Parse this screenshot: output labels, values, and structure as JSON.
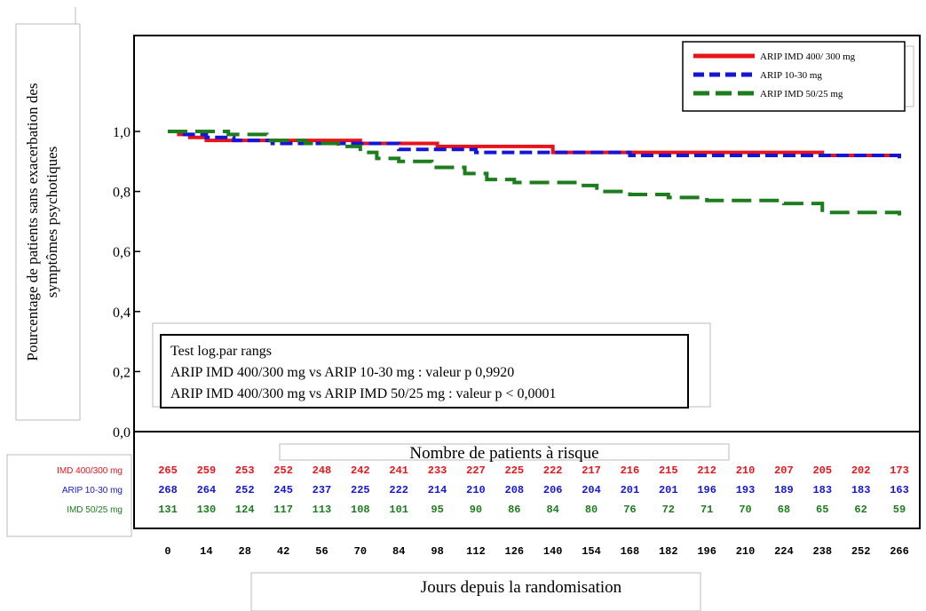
{
  "chart_data": {
    "type": "line",
    "ylabel": "Pourcentage de patients sans exacerbation des symptômes psychotiques",
    "xlabel": "Jours depuis la randomisation",
    "ylim": [
      0,
      1.0
    ],
    "xlim": [
      0,
      266
    ],
    "yticks": [
      "1,0",
      "0,8",
      "0,6",
      "0,4",
      "0,2",
      "0,0"
    ],
    "ytick_values": [
      1.0,
      0.8,
      0.6,
      0.4,
      0.2,
      0.0
    ],
    "xticks": [
      0,
      14,
      28,
      42,
      56,
      70,
      84,
      98,
      112,
      126,
      140,
      154,
      168,
      182,
      196,
      210,
      224,
      238,
      252,
      266
    ],
    "legend_position": "top-right",
    "series": [
      {
        "name": "ARIP IMD 400/ 300 mg",
        "color": "#e8141b",
        "style": "solid",
        "x": [
          0,
          4,
          8,
          14,
          22,
          30,
          50,
          70,
          98,
          140,
          196,
          238,
          266
        ],
        "y": [
          1.0,
          0.99,
          0.98,
          0.97,
          0.97,
          0.97,
          0.97,
          0.96,
          0.95,
          0.93,
          0.93,
          0.92,
          0.91
        ]
      },
      {
        "name": "ARIP 10-30 mg",
        "color": "#1515d8",
        "style": "dashed",
        "x": [
          0,
          6,
          14,
          24,
          38,
          56,
          84,
          112,
          140,
          168,
          210,
          238,
          266
        ],
        "y": [
          1.0,
          0.99,
          0.98,
          0.97,
          0.96,
          0.96,
          0.94,
          0.93,
          0.93,
          0.92,
          0.92,
          0.92,
          0.91
        ]
      },
      {
        "name": "ARIP IMD 50/25 mg",
        "color": "#1c7d1c",
        "style": "longdash",
        "x": [
          0,
          14,
          22,
          36,
          50,
          62,
          70,
          76,
          84,
          96,
          108,
          116,
          126,
          148,
          156,
          168,
          182,
          196,
          224,
          238,
          266
        ],
        "y": [
          1.0,
          1.0,
          0.99,
          0.97,
          0.96,
          0.95,
          0.93,
          0.91,
          0.9,
          0.88,
          0.86,
          0.84,
          0.83,
          0.82,
          0.8,
          0.79,
          0.78,
          0.77,
          0.76,
          0.73,
          0.72
        ]
      }
    ],
    "stats_box": {
      "title": "Test log.par rangs",
      "lines": [
        "ARIP IMD 400/300 mg vs ARIP 10-30 mg : valeur p 0,9920",
        "ARIP IMD 400/300 mg vs ARIP IMD 50/25 mg : valeur p < 0,0001"
      ]
    },
    "risk_table": {
      "title": "Nombre de patients à risque",
      "rows": [
        {
          "label": "IMD 400/300 mg",
          "color": "#e8141b",
          "values": [
            "265",
            "259",
            "253",
            "252",
            "248",
            "242",
            "241",
            "233",
            "227",
            "225",
            "222",
            "217",
            "216",
            "215",
            "212",
            "210",
            "207",
            "205",
            "202",
            "173"
          ]
        },
        {
          "label": "ARIP 10-30 mg",
          "color": "#1515d8",
          "values": [
            "268",
            "264",
            "252",
            "245",
            "237",
            "225",
            "222",
            "214",
            "210",
            "208",
            "206",
            "204",
            "201",
            "201",
            "196",
            "193",
            "189",
            "183",
            "183",
            "163"
          ]
        },
        {
          "label": "IMD 50/25 mg",
          "color": "#1c7d1c",
          "values": [
            "131",
            "130",
            "124",
            "117",
            "113",
            "108",
            "101",
            "95",
            "90",
            "86",
            "84",
            "80",
            "76",
            "72",
            "71",
            "70",
            "68",
            "65",
            "62",
            "59"
          ]
        }
      ]
    }
  }
}
